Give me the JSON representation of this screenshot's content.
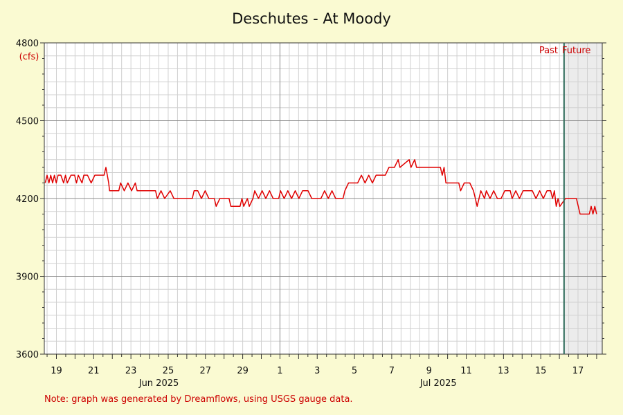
{
  "chart_data": {
    "type": "line",
    "title": "Deschutes - At Moody",
    "ylabel": "(cfs)",
    "ylim": [
      3600,
      4800
    ],
    "y_ticks": [
      "3600",
      "3900",
      "4200",
      "4500",
      "4800"
    ],
    "x_tick_labels": [
      "19",
      "21",
      "23",
      "25",
      "27",
      "29",
      "1",
      "3",
      "5",
      "7",
      "9",
      "11",
      "13",
      "15",
      "17"
    ],
    "x_tick_days": [
      19,
      21,
      23,
      25,
      27,
      29,
      31,
      33,
      35,
      37,
      39,
      41,
      43,
      45,
      47
    ],
    "month_labels": [
      {
        "label": "Jun 2025",
        "day": 24.5
      },
      {
        "label": "Jul 2025",
        "day": 39.5
      }
    ],
    "x_range_days": [
      18.0,
      48.0
    ],
    "now_day": 46.25,
    "legend": {
      "past": "Past",
      "future": "Future"
    },
    "series": [
      {
        "points": [
          [
            18.0,
            4260
          ],
          [
            18.1,
            4290
          ],
          [
            18.2,
            4260
          ],
          [
            18.3,
            4290
          ],
          [
            18.4,
            4260
          ],
          [
            18.5,
            4290
          ],
          [
            18.6,
            4260
          ],
          [
            18.7,
            4290
          ],
          [
            18.85,
            4290
          ],
          [
            19.0,
            4260
          ],
          [
            19.1,
            4290
          ],
          [
            19.2,
            4260
          ],
          [
            19.4,
            4290
          ],
          [
            19.6,
            4290
          ],
          [
            19.7,
            4260
          ],
          [
            19.8,
            4290
          ],
          [
            20.0,
            4260
          ],
          [
            20.1,
            4290
          ],
          [
            20.3,
            4290
          ],
          [
            20.5,
            4260
          ],
          [
            20.7,
            4290
          ],
          [
            21.0,
            4290
          ],
          [
            21.2,
            4290
          ],
          [
            21.3,
            4320
          ],
          [
            21.45,
            4260
          ],
          [
            21.5,
            4230
          ],
          [
            22.0,
            4230
          ],
          [
            22.1,
            4260
          ],
          [
            22.3,
            4230
          ],
          [
            22.5,
            4260
          ],
          [
            22.7,
            4230
          ],
          [
            22.9,
            4260
          ],
          [
            23.0,
            4230
          ],
          [
            23.5,
            4230
          ],
          [
            24.0,
            4230
          ],
          [
            24.1,
            4200
          ],
          [
            24.3,
            4230
          ],
          [
            24.5,
            4200
          ],
          [
            24.8,
            4230
          ],
          [
            25.0,
            4200
          ],
          [
            26.0,
            4200
          ],
          [
            26.1,
            4230
          ],
          [
            26.3,
            4230
          ],
          [
            26.5,
            4200
          ],
          [
            26.7,
            4230
          ],
          [
            26.9,
            4200
          ],
          [
            27.2,
            4200
          ],
          [
            27.3,
            4170
          ],
          [
            27.5,
            4200
          ],
          [
            28.0,
            4200
          ],
          [
            28.1,
            4170
          ],
          [
            28.6,
            4170
          ],
          [
            28.7,
            4200
          ],
          [
            28.8,
            4170
          ],
          [
            29.0,
            4200
          ],
          [
            29.1,
            4170
          ],
          [
            29.3,
            4200
          ],
          [
            29.4,
            4230
          ],
          [
            29.6,
            4200
          ],
          [
            29.8,
            4230
          ],
          [
            30.0,
            4200
          ],
          [
            30.2,
            4230
          ],
          [
            30.4,
            4200
          ],
          [
            30.7,
            4200
          ],
          [
            30.8,
            4230
          ],
          [
            31.0,
            4200
          ],
          [
            31.2,
            4230
          ],
          [
            31.4,
            4200
          ],
          [
            31.6,
            4230
          ],
          [
            31.8,
            4200
          ],
          [
            32.0,
            4230
          ],
          [
            32.3,
            4230
          ],
          [
            32.5,
            4200
          ],
          [
            33.0,
            4200
          ],
          [
            33.2,
            4230
          ],
          [
            33.4,
            4200
          ],
          [
            33.6,
            4230
          ],
          [
            33.8,
            4200
          ],
          [
            34.2,
            4200
          ],
          [
            34.3,
            4230
          ],
          [
            34.5,
            4260
          ],
          [
            35.0,
            4260
          ],
          [
            35.2,
            4290
          ],
          [
            35.4,
            4260
          ],
          [
            35.6,
            4290
          ],
          [
            35.8,
            4260
          ],
          [
            36.0,
            4290
          ],
          [
            36.5,
            4290
          ],
          [
            36.7,
            4320
          ],
          [
            37.0,
            4320
          ],
          [
            37.2,
            4350
          ],
          [
            37.3,
            4320
          ],
          [
            37.8,
            4350
          ],
          [
            37.9,
            4320
          ],
          [
            38.1,
            4350
          ],
          [
            38.2,
            4320
          ],
          [
            38.6,
            4320
          ],
          [
            39.0,
            4320
          ],
          [
            39.5,
            4320
          ],
          [
            39.6,
            4290
          ],
          [
            39.7,
            4320
          ],
          [
            39.8,
            4260
          ],
          [
            40.0,
            4260
          ],
          [
            40.5,
            4260
          ],
          [
            40.6,
            4230
          ],
          [
            40.8,
            4260
          ],
          [
            41.1,
            4260
          ],
          [
            41.3,
            4230
          ],
          [
            41.4,
            4200
          ],
          [
            41.5,
            4170
          ],
          [
            41.6,
            4200
          ],
          [
            41.7,
            4230
          ],
          [
            41.9,
            4200
          ],
          [
            42.0,
            4230
          ],
          [
            42.2,
            4200
          ],
          [
            42.4,
            4230
          ],
          [
            42.6,
            4200
          ],
          [
            42.8,
            4200
          ],
          [
            43.0,
            4230
          ],
          [
            43.3,
            4230
          ],
          [
            43.4,
            4200
          ],
          [
            43.6,
            4230
          ],
          [
            43.8,
            4200
          ],
          [
            44.0,
            4230
          ],
          [
            44.5,
            4230
          ],
          [
            44.7,
            4200
          ],
          [
            44.9,
            4230
          ],
          [
            45.1,
            4200
          ],
          [
            45.3,
            4230
          ],
          [
            45.5,
            4230
          ],
          [
            45.6,
            4200
          ],
          [
            45.7,
            4230
          ],
          [
            45.8,
            4170
          ],
          [
            45.9,
            4200
          ],
          [
            46.0,
            4170
          ],
          [
            46.3,
            4200
          ],
          [
            46.9,
            4200
          ],
          [
            47.0,
            4170
          ],
          [
            47.1,
            4140
          ],
          [
            47.6,
            4140
          ],
          [
            47.7,
            4170
          ],
          [
            47.8,
            4140
          ],
          [
            47.9,
            4170
          ],
          [
            48.0,
            4140
          ]
        ]
      }
    ]
  },
  "note": "Note: graph was generated by Dreamflows, using USGS gauge data.",
  "colors": {
    "background": "#fafad2",
    "plot_bg": "#ffffff",
    "future_bg": "#ececec",
    "series": "#e00000",
    "now_line": "#2e6b5a",
    "grid_major": "#8c8c8c",
    "grid_minor": "#d0d0d0",
    "label_red": "#cc0000"
  }
}
